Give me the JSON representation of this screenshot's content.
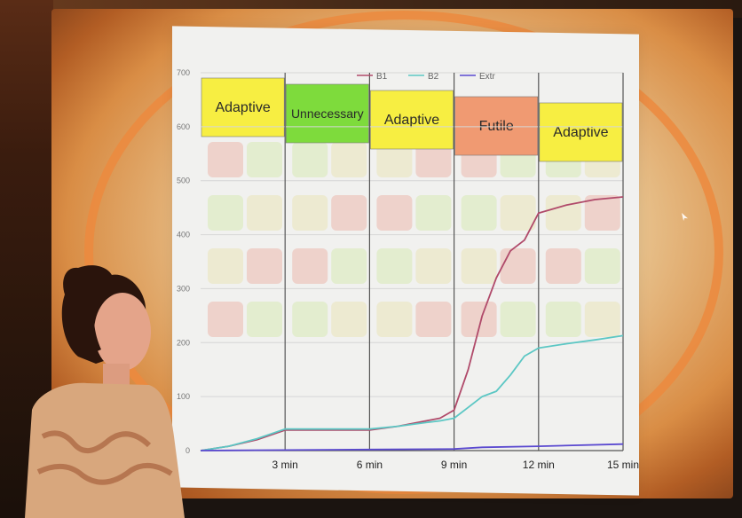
{
  "chart_data": {
    "type": "line",
    "x_ticks": [
      "3 min",
      "6 min",
      "9 min",
      "12 min",
      "15 min"
    ],
    "ylim": [
      0,
      700
    ],
    "y_ticks": [
      0,
      100,
      200,
      300,
      400,
      500,
      600,
      700
    ],
    "legend_position": "top",
    "series": [
      {
        "name": "B1",
        "color": "#b04a6a",
        "points": [
          [
            0,
            0
          ],
          [
            1,
            8
          ],
          [
            2,
            20
          ],
          [
            3,
            38
          ],
          [
            4,
            38
          ],
          [
            5,
            38
          ],
          [
            6,
            38
          ],
          [
            7,
            45
          ],
          [
            8,
            55
          ],
          [
            8.5,
            60
          ],
          [
            9,
            75
          ],
          [
            9.5,
            150
          ],
          [
            10,
            250
          ],
          [
            10.5,
            320
          ],
          [
            11,
            370
          ],
          [
            11.5,
            390
          ],
          [
            12,
            440
          ],
          [
            13,
            455
          ],
          [
            14,
            465
          ],
          [
            15,
            470
          ]
        ]
      },
      {
        "name": "B2",
        "color": "#5cc7c4",
        "points": [
          [
            0,
            0
          ],
          [
            1,
            8
          ],
          [
            2,
            22
          ],
          [
            3,
            40
          ],
          [
            4,
            40
          ],
          [
            5,
            40
          ],
          [
            6,
            40
          ],
          [
            7,
            45
          ],
          [
            8,
            52
          ],
          [
            8.5,
            55
          ],
          [
            9,
            60
          ],
          [
            9.5,
            80
          ],
          [
            10,
            100
          ],
          [
            10.5,
            110
          ],
          [
            11,
            140
          ],
          [
            11.5,
            175
          ],
          [
            12,
            190
          ],
          [
            13,
            198
          ],
          [
            14,
            205
          ],
          [
            15,
            213
          ]
        ]
      },
      {
        "name": "Extr",
        "color": "#5b4ad0",
        "points": [
          [
            0,
            0
          ],
          [
            3,
            1
          ],
          [
            6,
            2
          ],
          [
            9,
            3
          ],
          [
            10,
            6
          ],
          [
            12,
            8
          ],
          [
            15,
            12
          ]
        ]
      }
    ],
    "phases": [
      {
        "label": "Adaptive",
        "color": "#f7ee42"
      },
      {
        "label": "Unnecessary",
        "color": "#7edb3c"
      },
      {
        "label": "Adaptive",
        "color": "#f7ee42"
      },
      {
        "label": "Futile",
        "color": "#f09a72"
      },
      {
        "label": "Adaptive",
        "color": "#f7ee42"
      }
    ]
  }
}
